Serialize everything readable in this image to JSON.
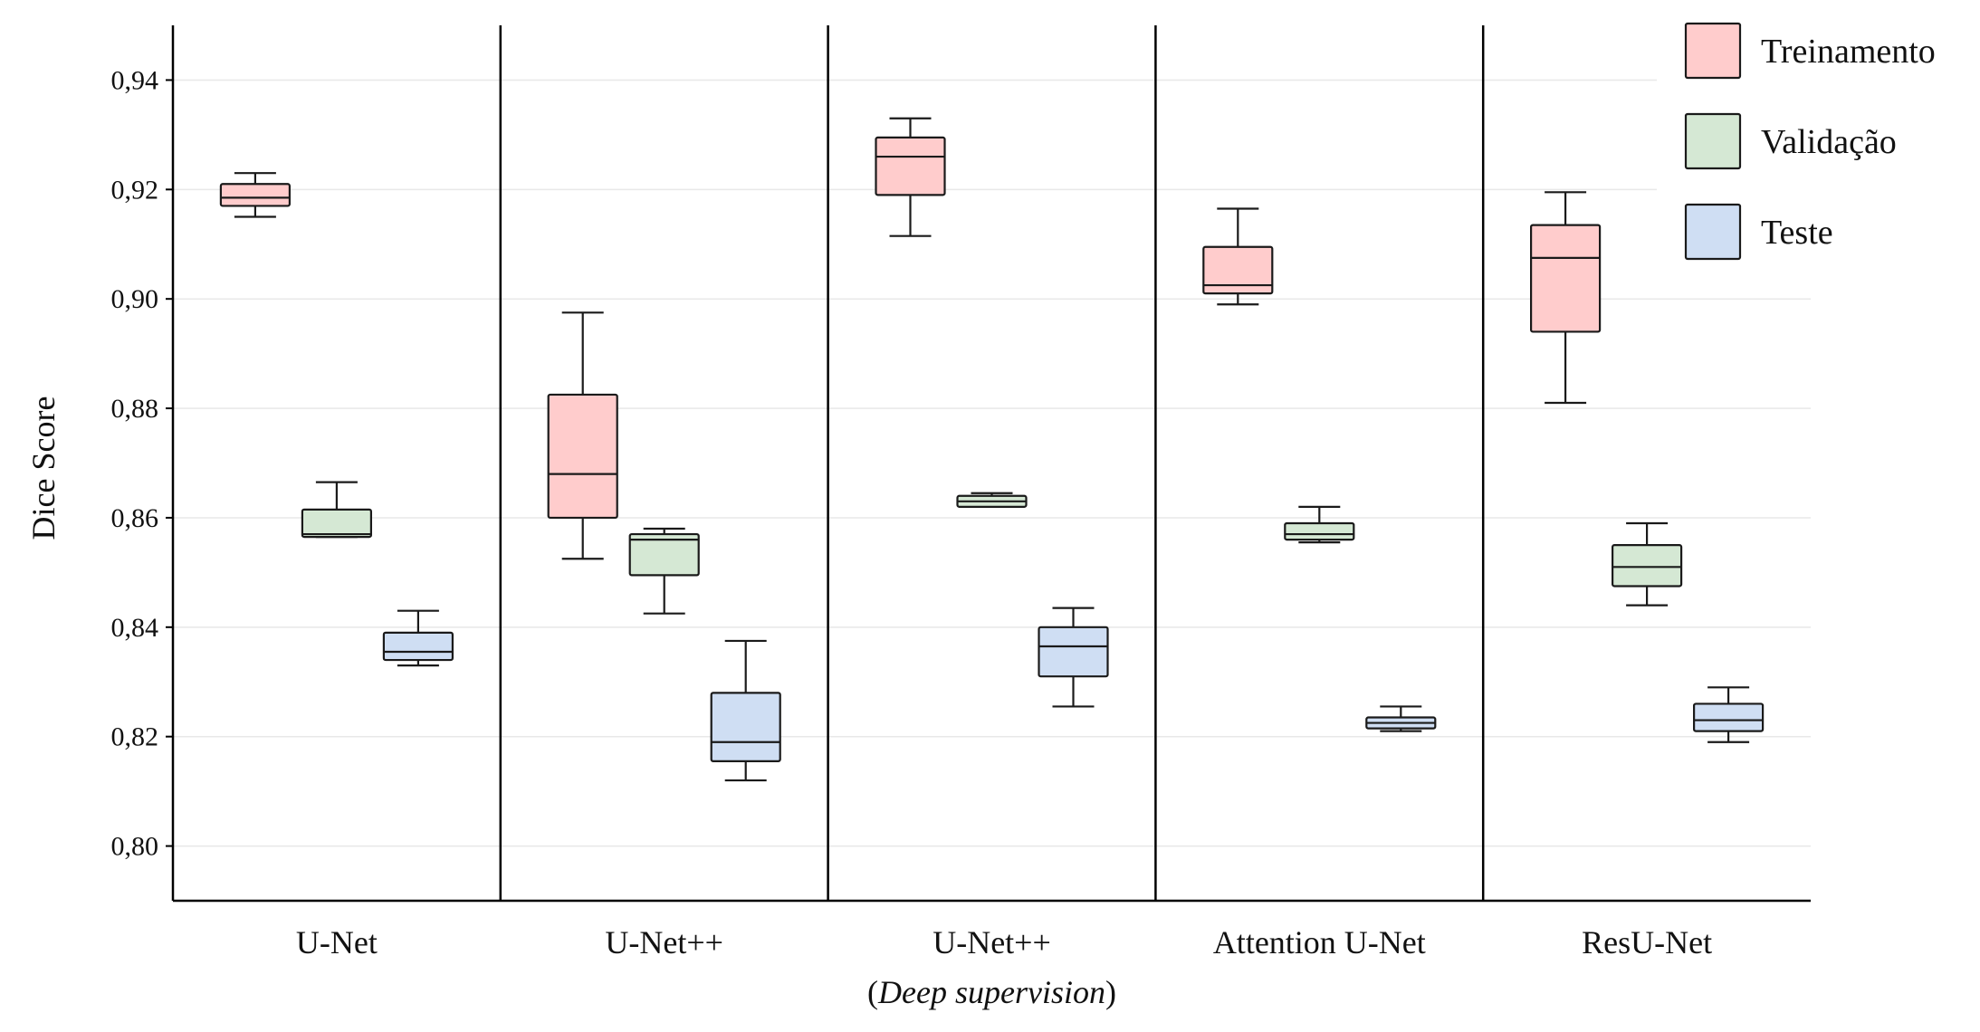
{
  "chart_data": {
    "type": "box",
    "title": "",
    "xlabel": "",
    "ylabel": "Dice Score",
    "ylim": [
      0.79,
      0.95
    ],
    "yticks": [
      "0,80",
      "0,82",
      "0,84",
      "0,86",
      "0,88",
      "0,90",
      "0,92",
      "0,94"
    ],
    "ytick_values": [
      0.8,
      0.82,
      0.84,
      0.86,
      0.88,
      0.9,
      0.92,
      0.94
    ],
    "grid": true,
    "legend_position": "top-right",
    "categories": [
      {
        "label": "U-Net",
        "sublabel": ""
      },
      {
        "label": "U-Net++",
        "sublabel": ""
      },
      {
        "label": "U-Net++",
        "sublabel_open": "(",
        "sublabel": "Deep supervision",
        "sublabel_close": ")"
      },
      {
        "label": "Attention U-Net",
        "sublabel": ""
      },
      {
        "label": "ResU-Net",
        "sublabel": ""
      }
    ],
    "series": [
      {
        "name": "Treinamento",
        "color": "#ffcccc",
        "boxes": [
          {
            "whislo": 0.915,
            "q1": 0.917,
            "med": 0.9185,
            "q3": 0.921,
            "whishi": 0.923
          },
          {
            "whislo": 0.8525,
            "q1": 0.86,
            "med": 0.868,
            "q3": 0.8825,
            "whishi": 0.8975
          },
          {
            "whislo": 0.9115,
            "q1": 0.919,
            "med": 0.926,
            "q3": 0.9295,
            "whishi": 0.933
          },
          {
            "whislo": 0.899,
            "q1": 0.901,
            "med": 0.9025,
            "q3": 0.9095,
            "whishi": 0.9165
          },
          {
            "whislo": 0.881,
            "q1": 0.894,
            "med": 0.9075,
            "q3": 0.9135,
            "whishi": 0.9195
          }
        ]
      },
      {
        "name": "Validação",
        "color": "#d5e8d4",
        "boxes": [
          {
            "whislo": 0.8565,
            "q1": 0.8565,
            "med": 0.857,
            "q3": 0.8615,
            "whishi": 0.8665
          },
          {
            "whislo": 0.8425,
            "q1": 0.8495,
            "med": 0.856,
            "q3": 0.857,
            "whishi": 0.858
          },
          {
            "whislo": 0.862,
            "q1": 0.862,
            "med": 0.863,
            "q3": 0.864,
            "whishi": 0.8645
          },
          {
            "whislo": 0.8555,
            "q1": 0.856,
            "med": 0.857,
            "q3": 0.859,
            "whishi": 0.862
          },
          {
            "whislo": 0.844,
            "q1": 0.8475,
            "med": 0.851,
            "q3": 0.855,
            "whishi": 0.859
          }
        ]
      },
      {
        "name": "Teste",
        "color": "#cfdef3",
        "boxes": [
          {
            "whislo": 0.833,
            "q1": 0.834,
            "med": 0.8355,
            "q3": 0.839,
            "whishi": 0.843
          },
          {
            "whislo": 0.812,
            "q1": 0.8155,
            "med": 0.819,
            "q3": 0.828,
            "whishi": 0.8375
          },
          {
            "whislo": 0.8255,
            "q1": 0.831,
            "med": 0.8365,
            "q3": 0.84,
            "whishi": 0.8435
          },
          {
            "whislo": 0.821,
            "q1": 0.8215,
            "med": 0.8225,
            "q3": 0.8235,
            "whishi": 0.8255
          },
          {
            "whislo": 0.819,
            "q1": 0.821,
            "med": 0.823,
            "q3": 0.826,
            "whishi": 0.829
          }
        ]
      }
    ]
  }
}
